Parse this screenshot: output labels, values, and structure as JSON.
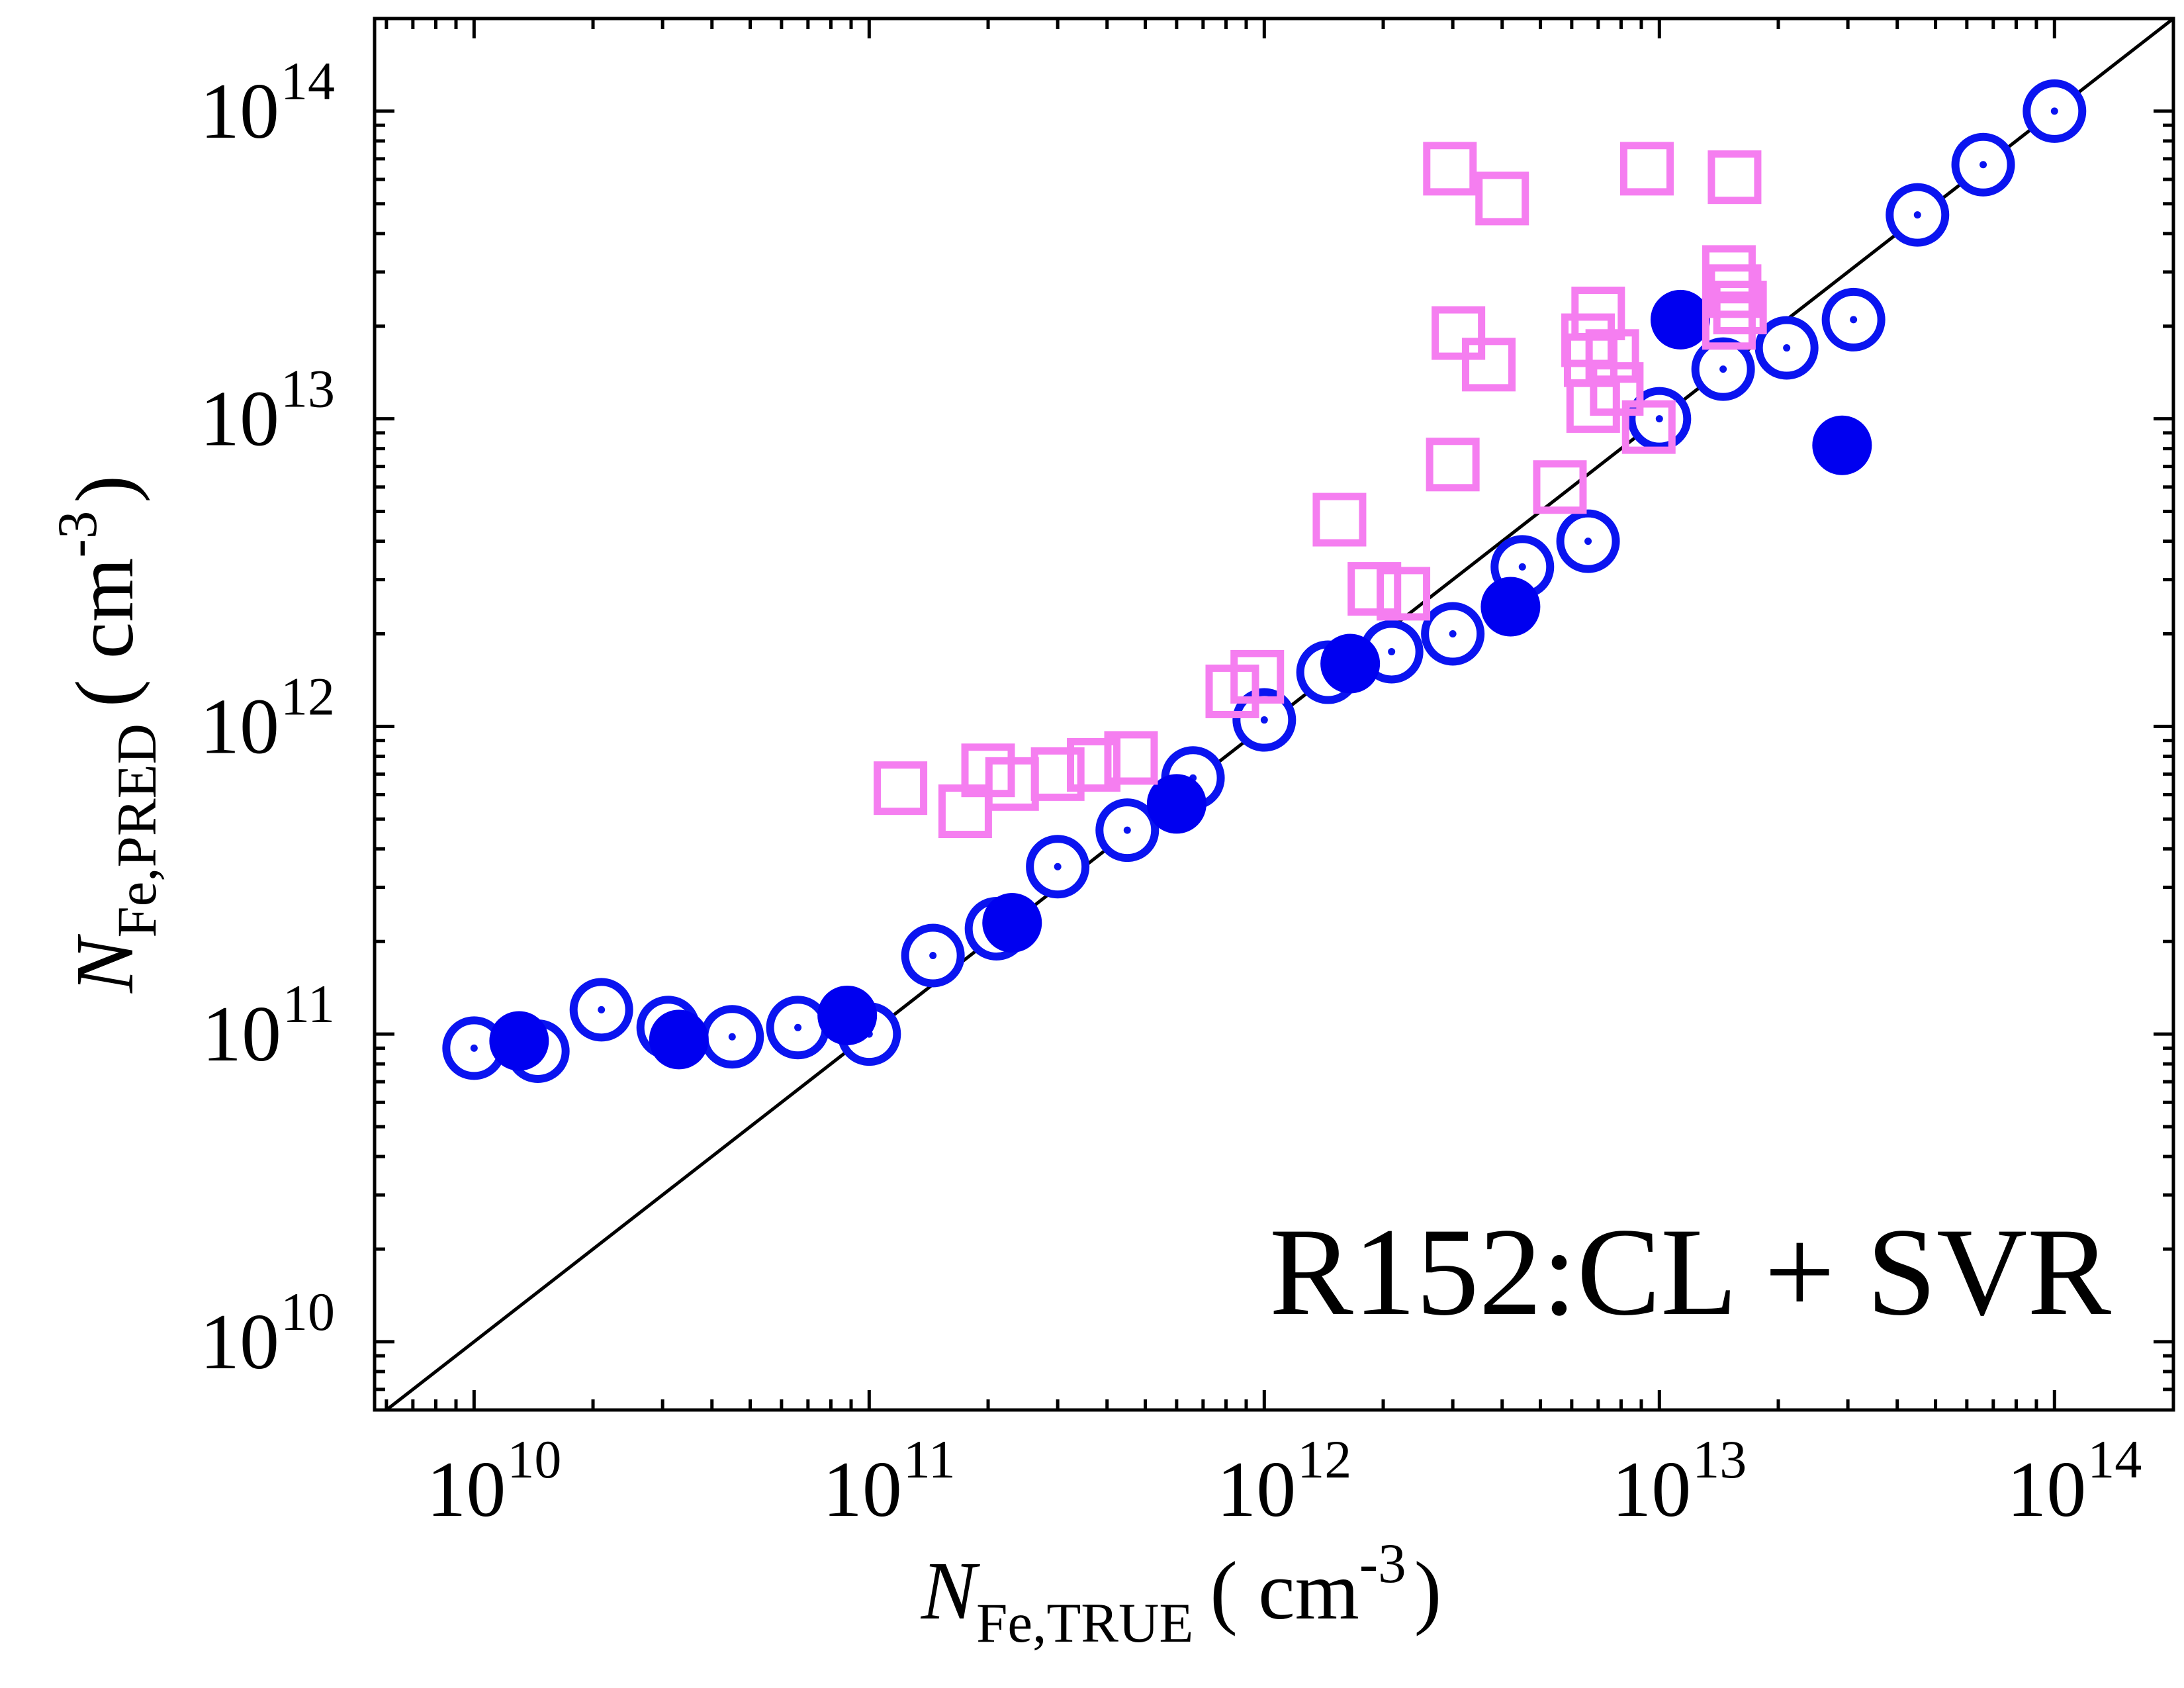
{
  "chart_data": {
    "type": "scatter",
    "title": "",
    "scale": {
      "x": "log",
      "y": "log"
    },
    "xlim": [
      5600000000.0,
      200000000000000.0
    ],
    "ylim": [
      6000000000.0,
      200000000000000.0
    ],
    "grid": false,
    "legend": "none",
    "x_axis": {
      "label_main": "N",
      "label_sub": "Fe,TRUE",
      "label_unit_open": "( cm",
      "label_unit_sup": "-3",
      "label_unit_close": ")"
    },
    "y_axis": {
      "label_main": "N",
      "label_sub": "Fe,PRED",
      "label_unit_open": "( cm",
      "label_unit_sup": "-3",
      "label_unit_close": ")"
    },
    "x_ticks": [
      {
        "value": 10000000000.0,
        "base": "10",
        "exp": "10"
      },
      {
        "value": 100000000000.0,
        "base": "10",
        "exp": "11"
      },
      {
        "value": 1000000000000.0,
        "base": "10",
        "exp": "12"
      },
      {
        "value": 10000000000000.0,
        "base": "10",
        "exp": "13"
      },
      {
        "value": 100000000000000.0,
        "base": "10",
        "exp": "14"
      }
    ],
    "y_ticks": [
      {
        "value": 10000000000.0,
        "base": "10",
        "exp": "10"
      },
      {
        "value": 100000000000.0,
        "base": "10",
        "exp": "11"
      },
      {
        "value": 1000000000000.0,
        "base": "10",
        "exp": "12"
      },
      {
        "value": 10000000000000.0,
        "base": "10",
        "exp": "13"
      },
      {
        "value": 100000000000000.0,
        "base": "10",
        "exp": "14"
      }
    ],
    "annotation": "R152:CL + SVR",
    "reference_line": {
      "type": "identity",
      "color": "#000000"
    },
    "colors": {
      "open_circle": "#0a14f0",
      "filled_circle": "#0000f0",
      "square": "#f57ef0"
    },
    "series": [
      {
        "marker": "open-circle-dot",
        "points": [
          [
            10000000000.0,
            90000000000.0
          ],
          [
            14500000000.0,
            88000000000.0
          ],
          [
            21000000000.0,
            120000000000.0
          ],
          [
            31000000000.0,
            105000000000.0
          ],
          [
            45000000000.0,
            98000000000.0
          ],
          [
            66000000000.0,
            105000000000.0
          ],
          [
            100000000000.0,
            100000000000.0
          ],
          [
            145000000000.0,
            180000000000.0
          ],
          [
            210000000000.0,
            220000000000.0
          ],
          [
            300000000000.0,
            350000000000.0
          ],
          [
            450000000000.0,
            460000000000.0
          ],
          [
            660000000000.0,
            680000000000.0
          ],
          [
            1000000000000.0,
            1050000000000.0
          ],
          [
            1450000000000.0,
            1500000000000.0
          ],
          [
            2100000000000.0,
            1750000000000.0
          ],
          [
            3000000000000.0,
            2000000000000.0
          ],
          [
            4500000000000.0,
            3300000000000.0
          ],
          [
            6600000000000.0,
            4000000000000.0
          ],
          [
            10000000000000.0,
            10000000000000.0
          ],
          [
            14500000000000.0,
            14500000000000.0
          ],
          [
            21000000000000.0,
            17000000000000.0
          ],
          [
            31000000000000.0,
            21000000000000.0
          ],
          [
            45000000000000.0,
            46000000000000.0
          ],
          [
            66000000000000.0,
            67000000000000.0
          ],
          [
            100000000000000.0,
            100000000000000.0
          ]
        ]
      },
      {
        "marker": "filled-circle",
        "points": [
          [
            13000000000.0,
            95000000000.0
          ],
          [
            33000000000.0,
            96000000000.0
          ],
          [
            88000000000.0,
            115000000000.0
          ],
          [
            230000000000.0,
            230000000000.0
          ],
          [
            600000000000.0,
            560000000000.0
          ],
          [
            1650000000000.0,
            1600000000000.0
          ],
          [
            4200000000000.0,
            2450000000000.0
          ],
          [
            11300000000000.0,
            21000000000000.0
          ],
          [
            29000000000000.0,
            8200000000000.0
          ]
        ]
      },
      {
        "marker": "open-square",
        "points": [
          [
            120000000000.0,
            630000000000.0
          ],
          [
            175000000000.0,
            530000000000.0
          ],
          [
            200000000000.0,
            720000000000.0
          ],
          [
            230000000000.0,
            650000000000.0
          ],
          [
            300000000000.0,
            700000000000.0
          ],
          [
            370000000000.0,
            750000000000.0
          ],
          [
            460000000000.0,
            790000000000.0
          ],
          [
            830000000000.0,
            1300000000000.0
          ],
          [
            960000000000.0,
            1450000000000.0
          ],
          [
            1550000000000.0,
            4700000000000.0
          ],
          [
            1900000000000.0,
            2800000000000.0
          ],
          [
            2250000000000.0,
            2700000000000.0
          ],
          [
            2950000000000.0,
            65000000000000.0
          ],
          [
            4000000000000.0,
            52000000000000.0
          ],
          [
            3100000000000.0,
            19000000000000.0
          ],
          [
            3700000000000.0,
            15000000000000.0
          ],
          [
            3000000000000.0,
            7100000000000.0
          ],
          [
            5600000000000.0,
            6000000000000.0
          ],
          [
            7000000000000.0,
            22000000000000.0
          ],
          [
            6600000000000.0,
            18000000000000.0
          ],
          [
            6700000000000.0,
            15500000000000.0
          ],
          [
            7600000000000.0,
            16000000000000.0
          ],
          [
            6800000000000.0,
            11000000000000.0
          ],
          [
            7800000000000.0,
            12500000000000.0
          ],
          [
            9400000000000.0,
            9400000000000.0
          ],
          [
            9300000000000.0,
            65000000000000.0
          ],
          [
            15500000000000.0,
            61000000000000.0
          ],
          [
            15000000000000.0,
            30000000000000.0
          ],
          [
            15500000000000.0,
            26000000000000.0
          ],
          [
            16000000000000.0,
            23000000000000.0
          ],
          [
            15000000000000.0,
            20500000000000.0
          ]
        ]
      }
    ]
  }
}
